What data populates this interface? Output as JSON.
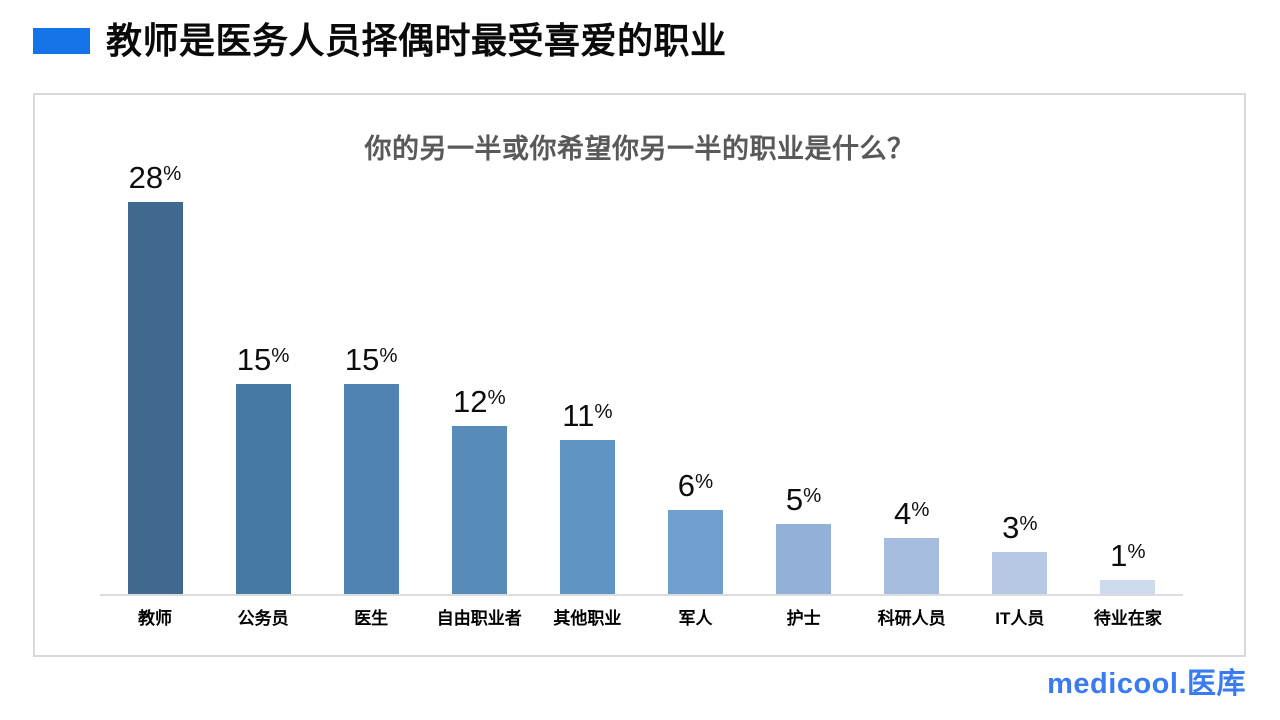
{
  "header": {
    "title": "教师是医务人员择偶时最受喜爱的职业",
    "accent_color": "#1473e6"
  },
  "chart_data": {
    "type": "bar",
    "title": "你的另一半或你希望你另一半的职业是什么？",
    "categories": [
      "教师",
      "公务员",
      "医生",
      "自由职业者",
      "其他职业",
      "军人",
      "护士",
      "科研人员",
      "IT人员",
      "待业在家"
    ],
    "values": [
      28,
      15,
      15,
      12,
      11,
      6,
      5,
      4,
      3,
      1
    ],
    "value_suffix": "%",
    "xlabel": "",
    "ylabel": "",
    "ylim": [
      0,
      30
    ],
    "grid": false,
    "legend": "none",
    "bar_colors": [
      "#41688E",
      "#4779A5",
      "#5083B1",
      "#578CBA",
      "#6094C2",
      "#6F9FCC",
      "#93B1D8",
      "#A6BCDE",
      "#B6C8E4",
      "#CEDAED"
    ],
    "axis_color": "#dcdcdc"
  },
  "footer": {
    "logo_text": "medicool.医库",
    "logo_color": "#3a7bf2"
  }
}
